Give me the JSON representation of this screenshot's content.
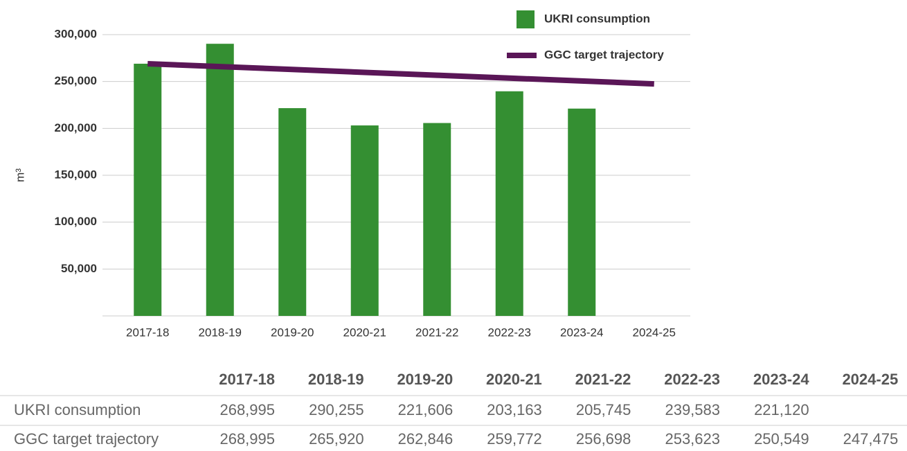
{
  "chart_data": {
    "type": "bar",
    "y_label": "m³",
    "categories": [
      "2017-18",
      "2018-19",
      "2019-20",
      "2020-21",
      "2021-22",
      "2022-23",
      "2023-24",
      "2024-25"
    ],
    "series": [
      {
        "name": "UKRI consumption",
        "type": "bar",
        "color": "#348f32",
        "values": [
          268995,
          290255,
          221606,
          203163,
          205745,
          239583,
          221120,
          null
        ],
        "value_labels": [
          "268,995",
          "290,255",
          "221,606",
          "203,163",
          "205,745",
          "239,583",
          "221,120",
          null
        ]
      },
      {
        "name": "GGC target trajectory",
        "type": "line",
        "color": "#5a1657",
        "values": [
          268995,
          265920,
          262846,
          259772,
          256698,
          253623,
          250549,
          247475
        ],
        "value_labels": [
          "268,995",
          "265,920",
          "262,846",
          "259,772",
          "256,698",
          "253,623",
          "250,549",
          "247,475"
        ]
      }
    ],
    "ylim": [
      0,
      300000
    ],
    "yticks": [
      {
        "value": 50000,
        "label": "50,000"
      },
      {
        "value": 100000,
        "label": "100,000"
      },
      {
        "value": 150000,
        "label": "150,000"
      },
      {
        "value": 200000,
        "label": "200,000"
      },
      {
        "value": 250000,
        "label": "250,000"
      },
      {
        "value": 300000,
        "label": "300,000"
      }
    ],
    "grid": true,
    "legend": "top-right"
  }
}
